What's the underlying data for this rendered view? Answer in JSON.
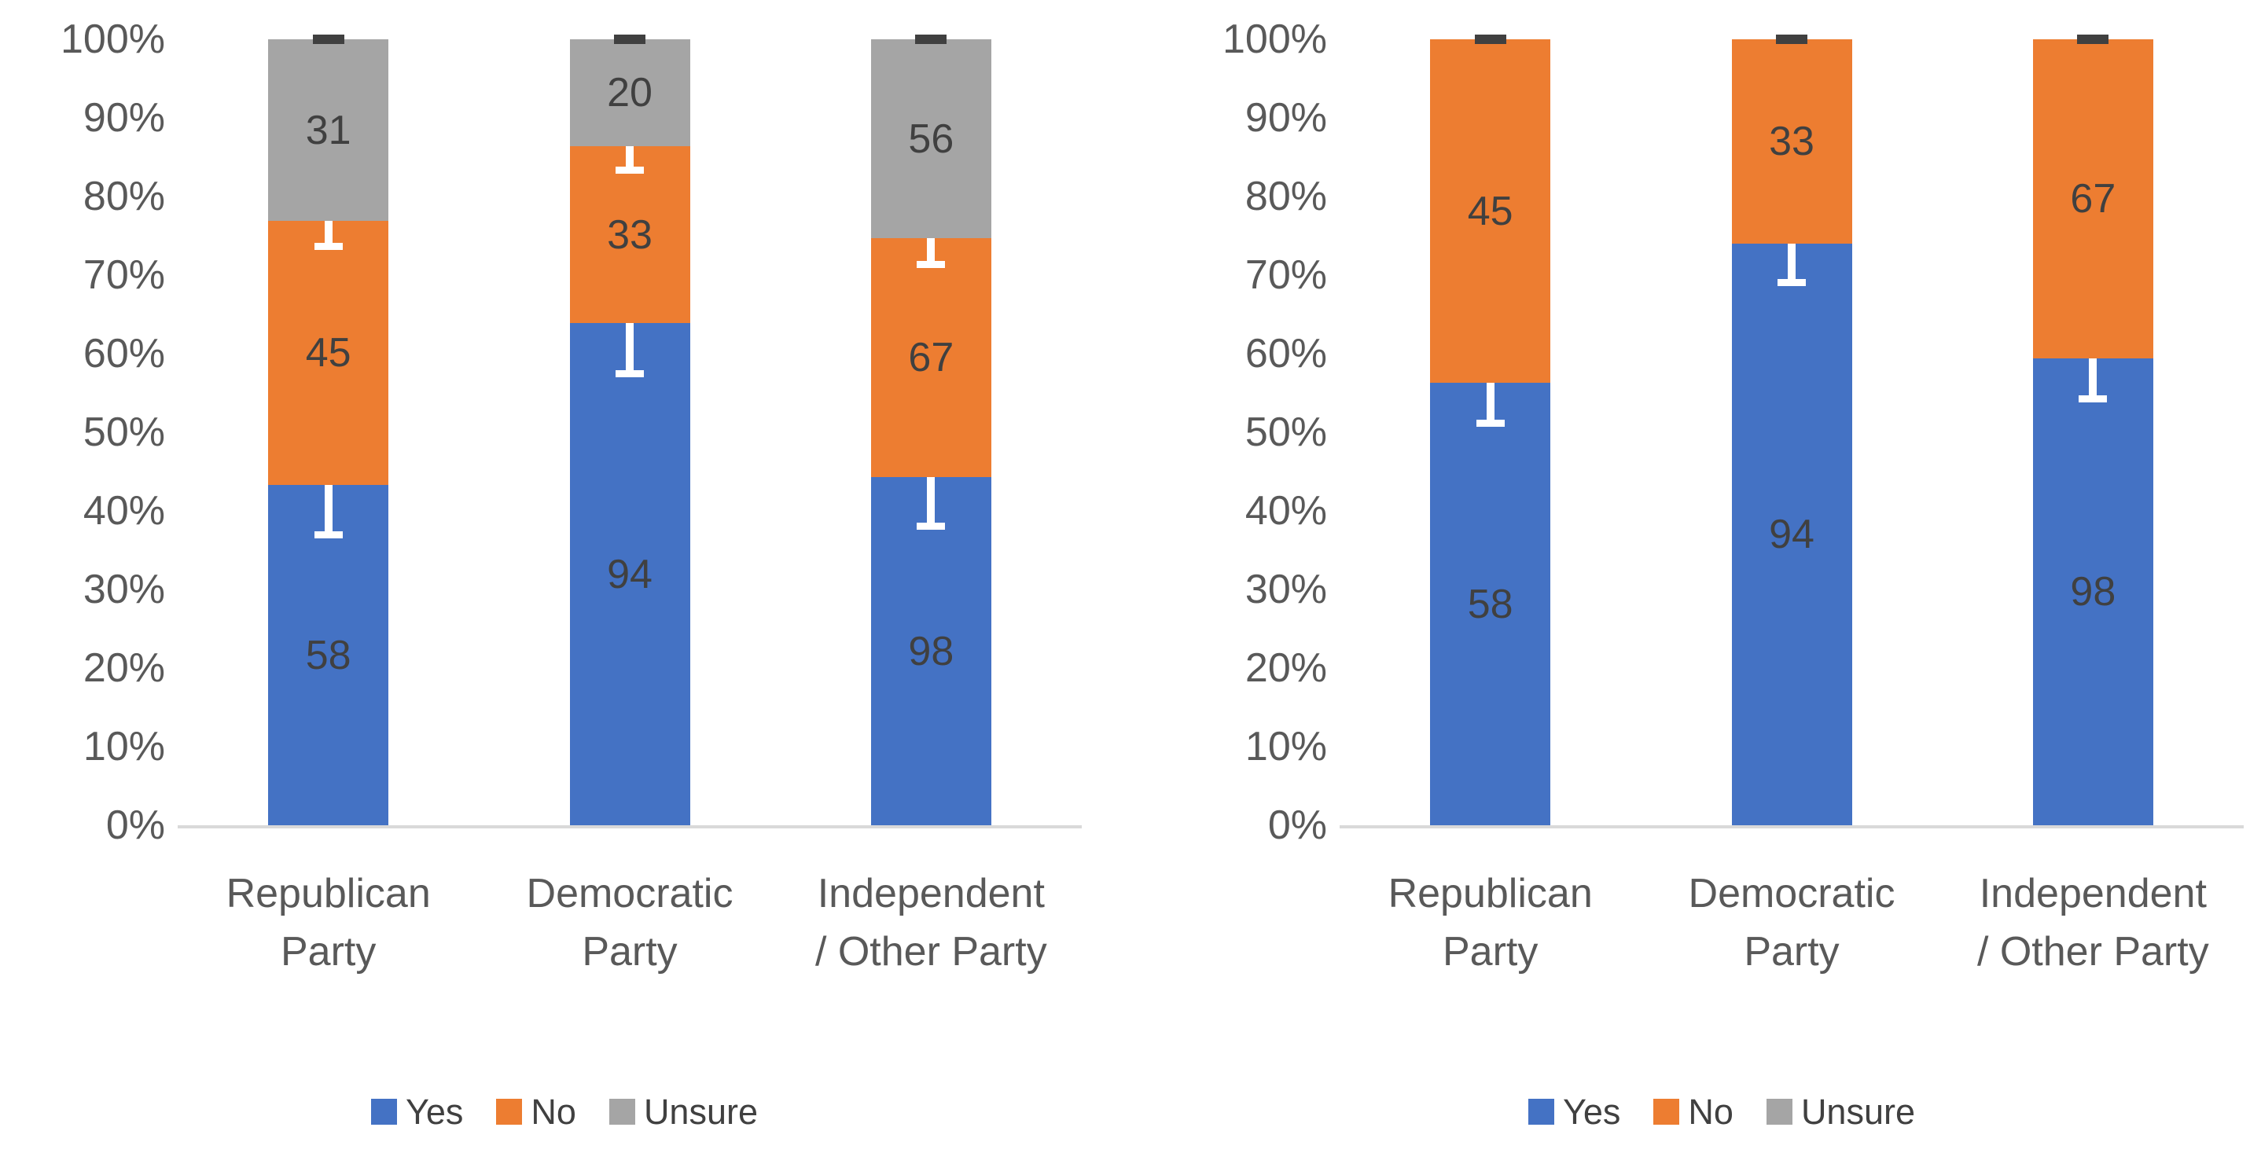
{
  "colors": {
    "yes": "#4472C4",
    "no": "#ED7D31",
    "unsure": "#A5A5A5",
    "error_bar": "#FFFFFF",
    "top_cap": "#404040",
    "axis_text": "#595959",
    "data_label_text": "#404040",
    "axis_line": "#D9D9D9"
  },
  "y_ticks": [
    "0%",
    "10%",
    "20%",
    "30%",
    "40%",
    "50%",
    "60%",
    "70%",
    "80%",
    "90%",
    "100%"
  ],
  "chart_data": [
    {
      "type": "bar",
      "subtype": "stacked-100-percent-column",
      "title": "",
      "xlabel": "",
      "ylabel": "",
      "ylim": [
        0,
        100
      ],
      "grid": false,
      "legend_position": "bottom",
      "error_bars": true,
      "categories": [
        "Republican Party",
        "Democratic Party",
        "Independent / Other Party"
      ],
      "category_label_lines": [
        [
          "Republican",
          "Party"
        ],
        [
          "Democratic",
          "Party"
        ],
        [
          "Independent",
          "/ Other Party"
        ]
      ],
      "legend": [
        "Yes",
        "No",
        "Unsure"
      ],
      "series": [
        {
          "name": "Yes",
          "color": "#4472C4",
          "values": [
            58,
            94,
            98
          ],
          "pct": [
            43.3,
            63.9,
            44.3
          ],
          "err_pct": [
            6.8,
            6.9,
            6.7
          ]
        },
        {
          "name": "No",
          "color": "#ED7D31",
          "values": [
            45,
            33,
            67
          ],
          "pct": [
            33.6,
            22.5,
            30.4
          ],
          "err_pct": [
            3.7,
            3.5,
            3.8
          ]
        },
        {
          "name": "Unsure",
          "color": "#A5A5A5",
          "values": [
            31,
            20,
            56
          ],
          "pct": [
            23.1,
            13.6,
            25.3
          ],
          "err_pct": [
            0,
            0,
            0
          ]
        }
      ]
    },
    {
      "type": "bar",
      "subtype": "stacked-100-percent-column",
      "title": "",
      "xlabel": "",
      "ylabel": "",
      "ylim": [
        0,
        100
      ],
      "grid": false,
      "legend_position": "bottom",
      "error_bars": true,
      "categories": [
        "Republican Party",
        "Democratic Party",
        "Independent / Other Party"
      ],
      "category_label_lines": [
        [
          "Republican",
          "Party"
        ],
        [
          "Democratic",
          "Party"
        ],
        [
          "Independent",
          "/ Other Party"
        ]
      ],
      "legend": [
        "Yes",
        "No",
        "Unsure"
      ],
      "series": [
        {
          "name": "Yes",
          "color": "#4472C4",
          "values": [
            58,
            94,
            98
          ],
          "pct": [
            56.3,
            74.0,
            59.4
          ],
          "err_pct": [
            5.6,
            5.4,
            5.6
          ]
        },
        {
          "name": "No",
          "color": "#ED7D31",
          "values": [
            45,
            33,
            67
          ],
          "pct": [
            43.7,
            26.0,
            40.6
          ],
          "err_pct": [
            0,
            0,
            0
          ]
        },
        {
          "name": "Unsure",
          "color": "#A5A5A5",
          "values": [
            null,
            null,
            null
          ],
          "pct": [
            0,
            0,
            0
          ],
          "err_pct": [
            0,
            0,
            0
          ]
        }
      ]
    }
  ]
}
